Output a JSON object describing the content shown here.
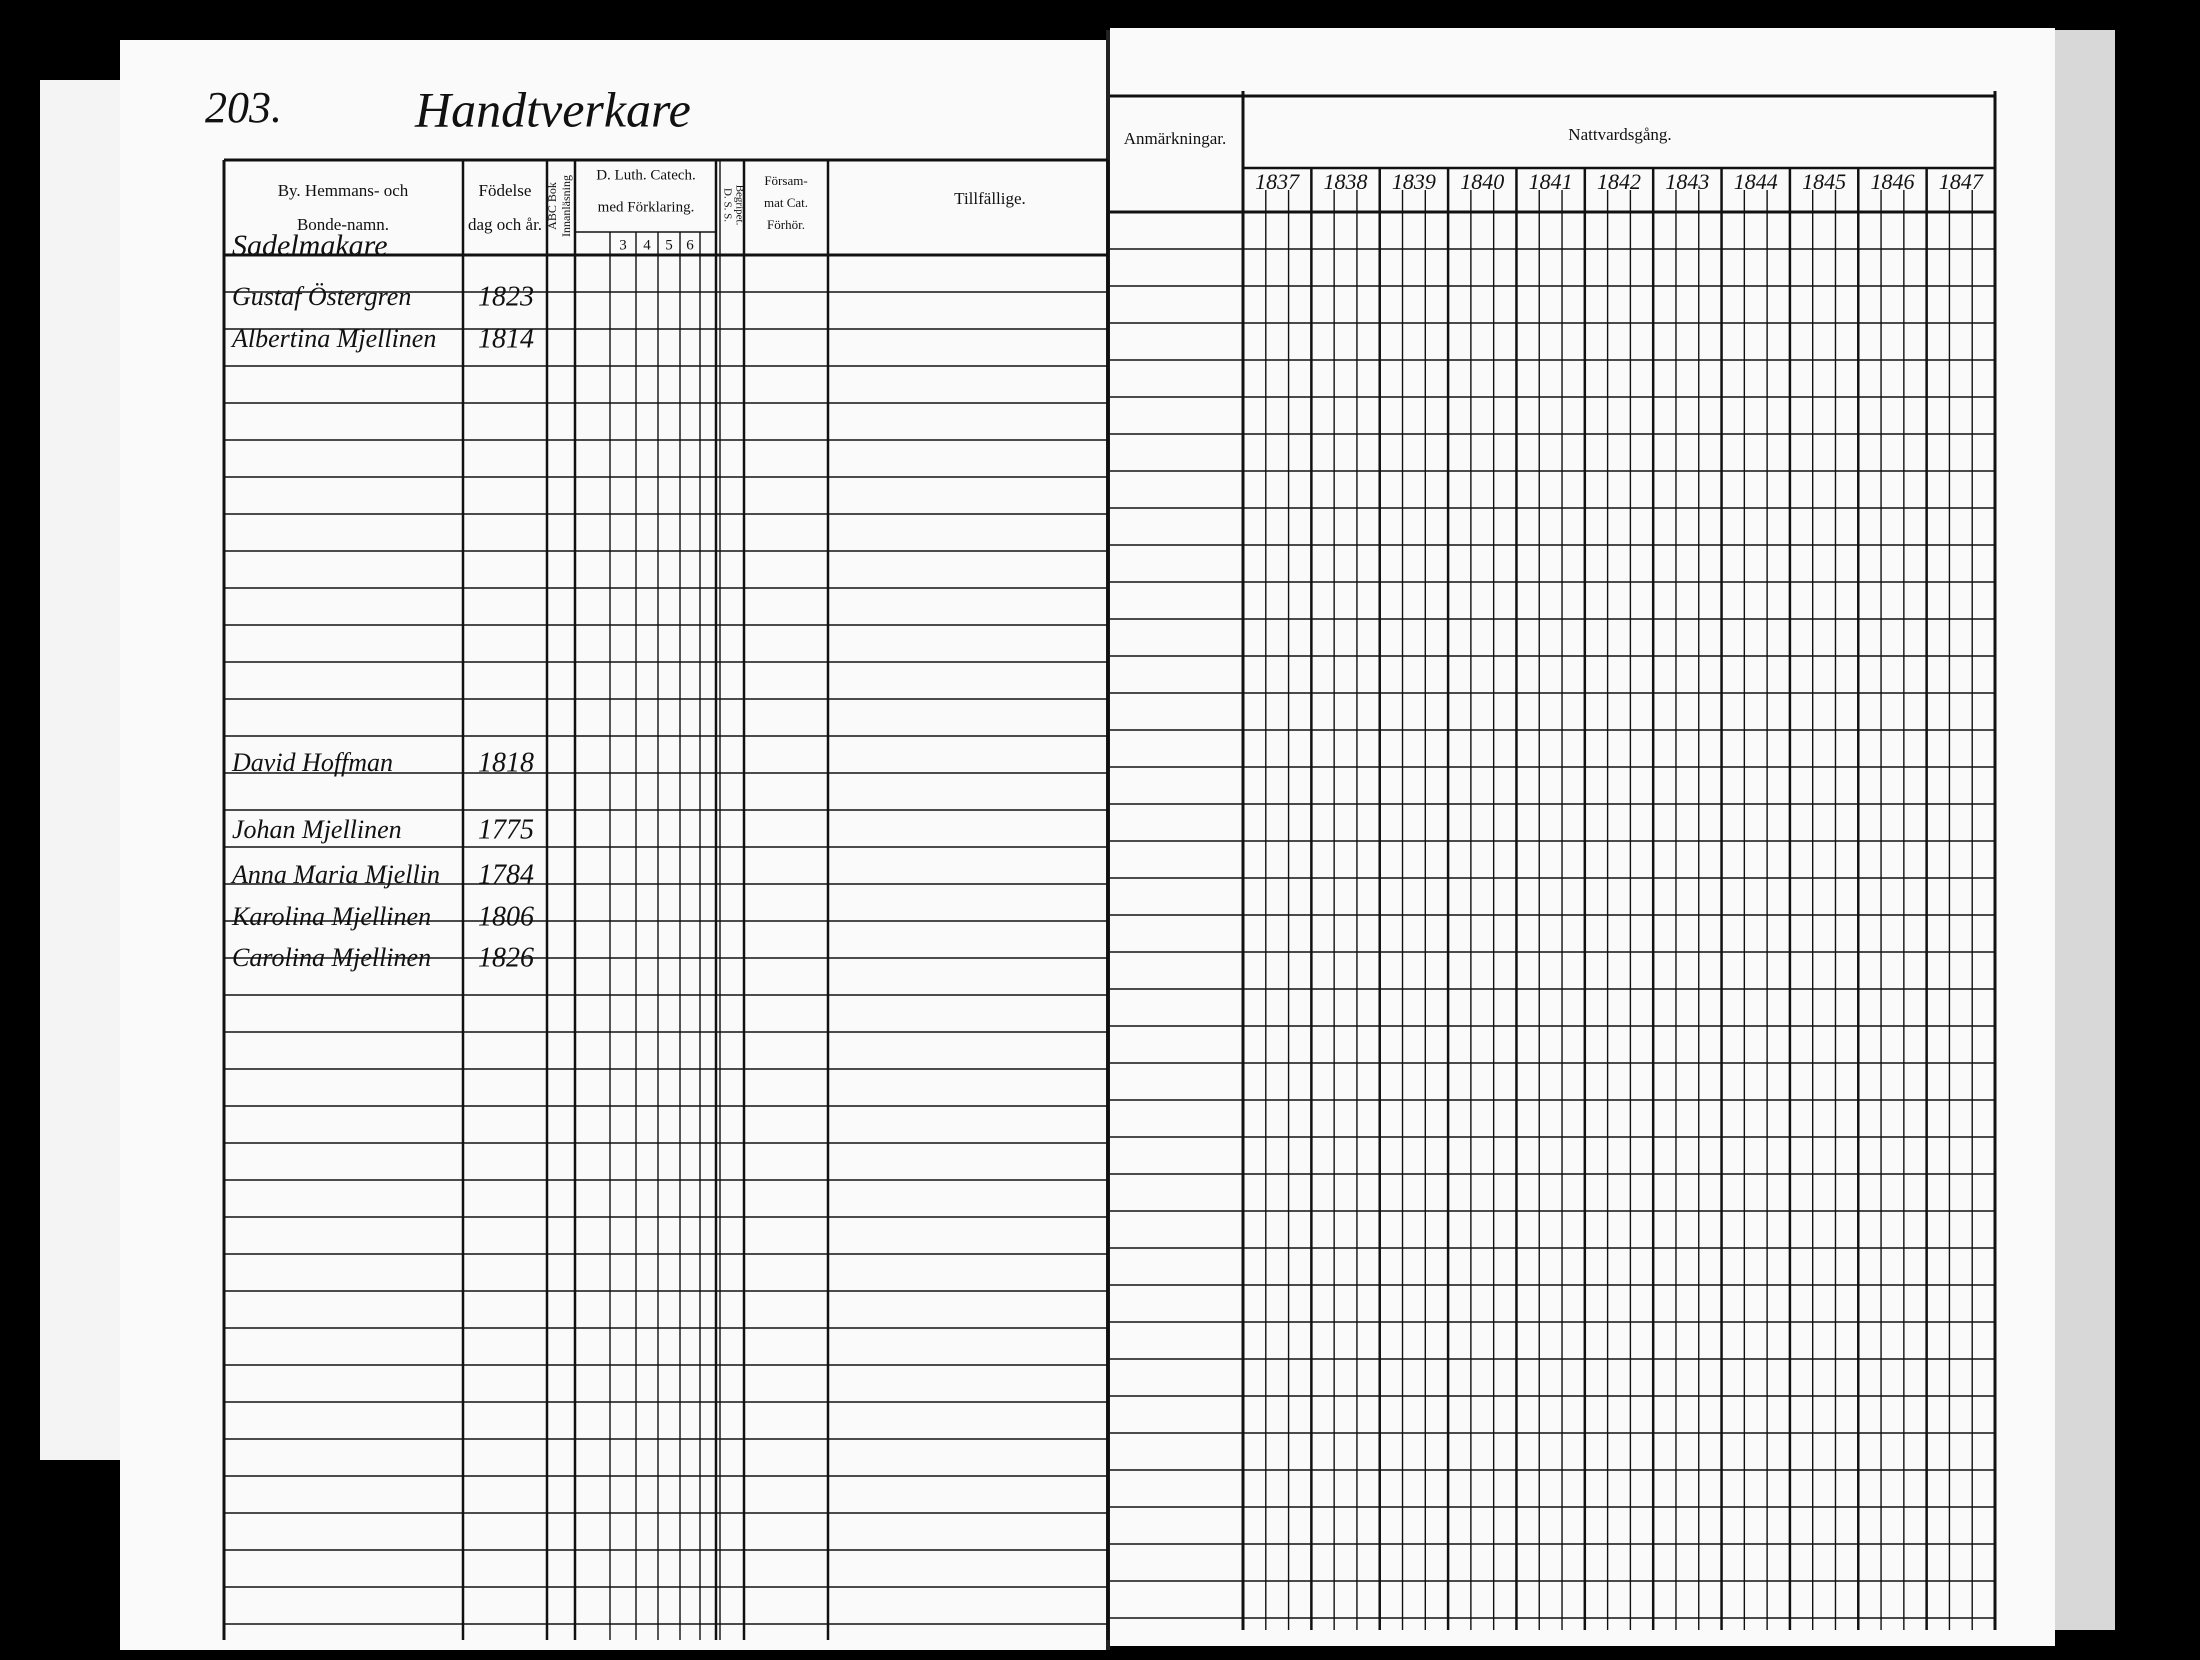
{
  "page_number": "203.",
  "section_title": "Handtverkare",
  "left_headers": {
    "name": [
      "By. Hemmans- och",
      "Bonde-namn."
    ],
    "birth": [
      "Födelse",
      "dag och år."
    ],
    "abc": [
      "ABC Bok",
      "Innanläsning"
    ],
    "catech": [
      "D. Luth. Catech.",
      "med Förklaring."
    ],
    "catech_parts": [
      "3",
      "4",
      "5",
      "6"
    ],
    "dss": [
      "D. S. S.",
      "Begripet."
    ],
    "forhor": [
      "Försam-",
      "mat Cat.",
      "Förhör."
    ],
    "tillfallige": "Tillfällige."
  },
  "right_headers": {
    "remarks": "Anmärkningar.",
    "communion": "Nattvardsgång.",
    "years": [
      "1837",
      "1838",
      "1839",
      "1840",
      "1841",
      "1842",
      "1843",
      "1844",
      "1845",
      "1846",
      "1847"
    ]
  },
  "group_label": "Sadelmakare",
  "entries": [
    {
      "name": "Gustaf Östergren",
      "birth": "1823"
    },
    {
      "name": "Albertina Mjellinen",
      "birth": "1814"
    },
    {
      "name": "David Hoffman",
      "birth": "1818"
    },
    {
      "name": "Johan Mjellinen",
      "birth": "1775"
    },
    {
      "name": "Anna Maria Mjellin",
      "birth": "1784"
    },
    {
      "name": "Karolina Mjellinen",
      "birth": "1806"
    },
    {
      "name": "Carolina Mjellinen",
      "birth": "1826"
    }
  ]
}
